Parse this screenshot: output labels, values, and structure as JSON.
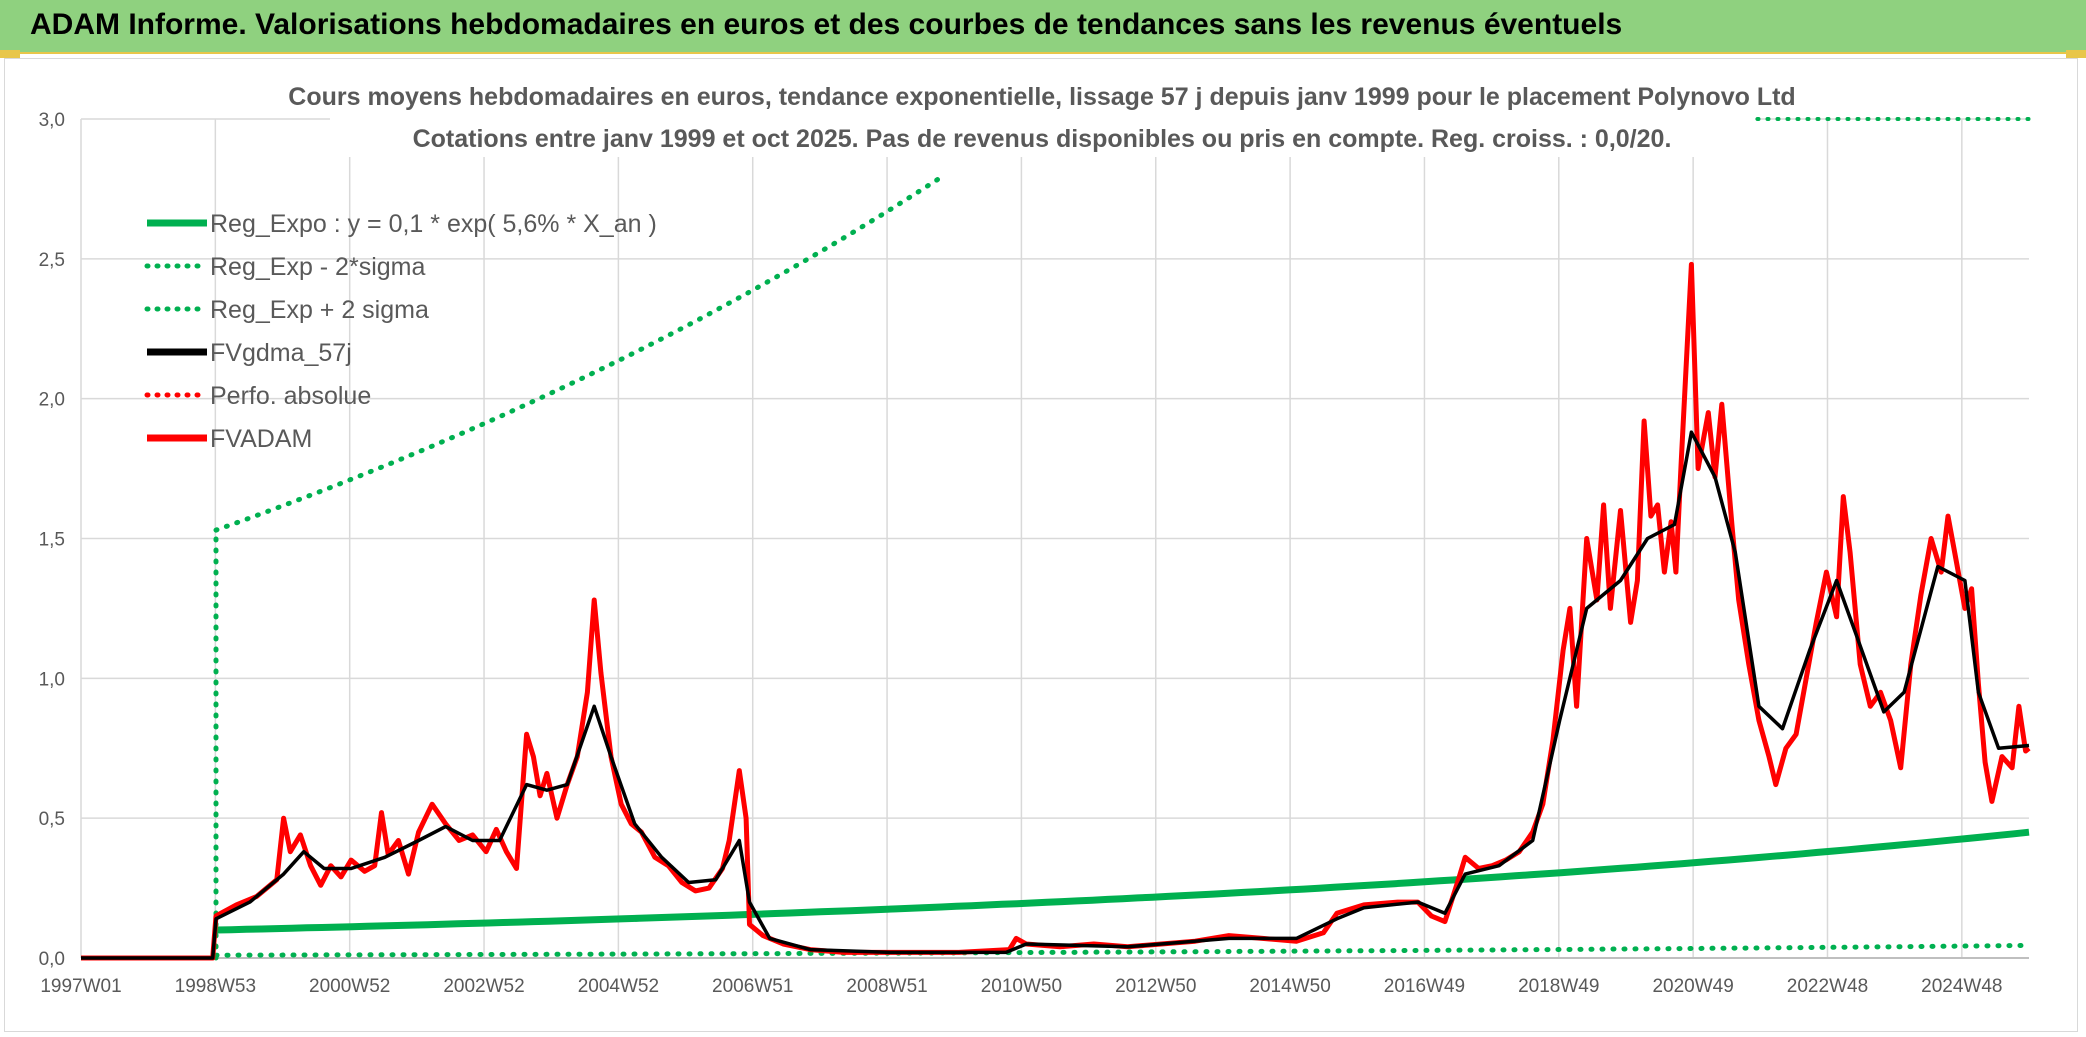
{
  "header": {
    "title": "ADAM Informe. Valorisations hebdomadaires en euros et des courbes de tendances sans les revenus éventuels"
  },
  "chart_data": {
    "type": "line",
    "title_line1": "Cours moyens hebdomadaires en euros, tendance exponentielle, lissage 57 j depuis janv 1999 pour le placement Polynovo Ltd",
    "title_line2": "Cotations entre janv 1999 et oct 2025. Pas de revenus disponibles ou pris en compte. Reg. croiss. : 0,0/20.",
    "x_ticks": [
      "1997W01",
      "1998W53",
      "2000W52",
      "2002W52",
      "2004W52",
      "2006W51",
      "2008W51",
      "2010W50",
      "2012W50",
      "2014W50",
      "2016W49",
      "2018W49",
      "2020W49",
      "2022W48",
      "2024W48"
    ],
    "y_ticks": [
      "0,0",
      "0,5",
      "1,0",
      "1,5",
      "2,0",
      "2,5",
      "3,0"
    ],
    "ylim": [
      0,
      3
    ],
    "xlim": [
      1997.0,
      2025.85
    ],
    "grid": true,
    "legend_position": "top-left",
    "legend": [
      {
        "label": "Reg_Expo : y = 0,1 * exp( 5,6% *  X_an )",
        "color": "#00b050",
        "style": "solid"
      },
      {
        "label": "Reg_Exp - 2*sigma",
        "color": "#00b050",
        "style": "dotted"
      },
      {
        "label": "Reg_Exp + 2 sigma",
        "color": "#00b050",
        "style": "dotted"
      },
      {
        "label": "FVgdma_57j",
        "color": "#000000",
        "style": "solid"
      },
      {
        "label": "Perfo. absolue",
        "color": "#ff0000",
        "style": "dotted"
      },
      {
        "label": "FVADAM",
        "color": "#ff0000",
        "style": "solid"
      }
    ],
    "series": [
      {
        "name": "FVADAM",
        "color": "#ff0000",
        "points": [
          [
            1997.0,
            0.0
          ],
          [
            1998.95,
            0.0
          ],
          [
            1999.0,
            0.15
          ],
          [
            1999.3,
            0.19
          ],
          [
            1999.6,
            0.22
          ],
          [
            1999.9,
            0.28
          ],
          [
            2000.0,
            0.5
          ],
          [
            2000.1,
            0.38
          ],
          [
            2000.25,
            0.44
          ],
          [
            2000.4,
            0.33
          ],
          [
            2000.55,
            0.26
          ],
          [
            2000.7,
            0.33
          ],
          [
            2000.85,
            0.29
          ],
          [
            2001.0,
            0.35
          ],
          [
            2001.2,
            0.31
          ],
          [
            2001.35,
            0.33
          ],
          [
            2001.45,
            0.52
          ],
          [
            2001.55,
            0.37
          ],
          [
            2001.7,
            0.42
          ],
          [
            2001.85,
            0.3
          ],
          [
            2002.0,
            0.45
          ],
          [
            2002.2,
            0.55
          ],
          [
            2002.4,
            0.48
          ],
          [
            2002.6,
            0.42
          ],
          [
            2002.8,
            0.44
          ],
          [
            2003.0,
            0.38
          ],
          [
            2003.15,
            0.46
          ],
          [
            2003.3,
            0.38
          ],
          [
            2003.45,
            0.32
          ],
          [
            2003.6,
            0.8
          ],
          [
            2003.7,
            0.72
          ],
          [
            2003.8,
            0.58
          ],
          [
            2003.9,
            0.66
          ],
          [
            2004.05,
            0.5
          ],
          [
            2004.2,
            0.62
          ],
          [
            2004.35,
            0.72
          ],
          [
            2004.5,
            0.95
          ],
          [
            2004.6,
            1.28
          ],
          [
            2004.7,
            1.02
          ],
          [
            2004.85,
            0.72
          ],
          [
            2005.0,
            0.55
          ],
          [
            2005.15,
            0.48
          ],
          [
            2005.3,
            0.45
          ],
          [
            2005.5,
            0.36
          ],
          [
            2005.7,
            0.33
          ],
          [
            2005.9,
            0.27
          ],
          [
            2006.1,
            0.24
          ],
          [
            2006.3,
            0.25
          ],
          [
            2006.5,
            0.32
          ],
          [
            2006.6,
            0.42
          ],
          [
            2006.75,
            0.67
          ],
          [
            2006.85,
            0.5
          ],
          [
            2006.9,
            0.12
          ],
          [
            2007.1,
            0.08
          ],
          [
            2007.4,
            0.05
          ],
          [
            2007.8,
            0.03
          ],
          [
            2008.3,
            0.02
          ],
          [
            2009.0,
            0.02
          ],
          [
            2010.0,
            0.02
          ],
          [
            2010.75,
            0.03
          ],
          [
            2010.85,
            0.07
          ],
          [
            2011.0,
            0.05
          ],
          [
            2011.5,
            0.04
          ],
          [
            2012.0,
            0.05
          ],
          [
            2012.5,
            0.04
          ],
          [
            2013.0,
            0.05
          ],
          [
            2013.5,
            0.06
          ],
          [
            2014.0,
            0.08
          ],
          [
            2014.5,
            0.07
          ],
          [
            2015.0,
            0.06
          ],
          [
            2015.4,
            0.09
          ],
          [
            2015.6,
            0.16
          ],
          [
            2016.0,
            0.19
          ],
          [
            2016.5,
            0.2
          ],
          [
            2016.8,
            0.2
          ],
          [
            2017.0,
            0.15
          ],
          [
            2017.2,
            0.13
          ],
          [
            2017.4,
            0.28
          ],
          [
            2017.5,
            0.36
          ],
          [
            2017.7,
            0.32
          ],
          [
            2017.9,
            0.33
          ],
          [
            2018.1,
            0.35
          ],
          [
            2018.3,
            0.38
          ],
          [
            2018.5,
            0.45
          ],
          [
            2018.65,
            0.55
          ],
          [
            2018.8,
            0.78
          ],
          [
            2018.95,
            1.1
          ],
          [
            2019.05,
            1.25
          ],
          [
            2019.15,
            0.9
          ],
          [
            2019.3,
            1.5
          ],
          [
            2019.45,
            1.28
          ],
          [
            2019.55,
            1.62
          ],
          [
            2019.65,
            1.25
          ],
          [
            2019.8,
            1.6
          ],
          [
            2019.95,
            1.2
          ],
          [
            2020.05,
            1.35
          ],
          [
            2020.15,
            1.92
          ],
          [
            2020.25,
            1.58
          ],
          [
            2020.35,
            1.62
          ],
          [
            2020.45,
            1.38
          ],
          [
            2020.55,
            1.56
          ],
          [
            2020.62,
            1.38
          ],
          [
            2020.7,
            1.78
          ],
          [
            2020.85,
            2.48
          ],
          [
            2020.95,
            1.75
          ],
          [
            2021.1,
            1.95
          ],
          [
            2021.2,
            1.72
          ],
          [
            2021.3,
            1.98
          ],
          [
            2021.45,
            1.55
          ],
          [
            2021.55,
            1.28
          ],
          [
            2021.7,
            1.05
          ],
          [
            2021.85,
            0.85
          ],
          [
            2022.0,
            0.72
          ],
          [
            2022.1,
            0.62
          ],
          [
            2022.25,
            0.75
          ],
          [
            2022.4,
            0.8
          ],
          [
            2022.55,
            1.0
          ],
          [
            2022.7,
            1.2
          ],
          [
            2022.85,
            1.38
          ],
          [
            2023.0,
            1.22
          ],
          [
            2023.1,
            1.65
          ],
          [
            2023.2,
            1.45
          ],
          [
            2023.35,
            1.05
          ],
          [
            2023.5,
            0.9
          ],
          [
            2023.65,
            0.95
          ],
          [
            2023.8,
            0.85
          ],
          [
            2023.95,
            0.68
          ],
          [
            2024.1,
            1.05
          ],
          [
            2024.25,
            1.3
          ],
          [
            2024.4,
            1.5
          ],
          [
            2024.55,
            1.38
          ],
          [
            2024.65,
            1.58
          ],
          [
            2024.75,
            1.45
          ],
          [
            2024.9,
            1.25
          ],
          [
            2025.0,
            1.32
          ],
          [
            2025.1,
            0.98
          ],
          [
            2025.2,
            0.7
          ],
          [
            2025.3,
            0.56
          ],
          [
            2025.45,
            0.72
          ],
          [
            2025.6,
            0.68
          ],
          [
            2025.7,
            0.9
          ],
          [
            2025.8,
            0.74
          ],
          [
            2025.85,
            0.75
          ]
        ]
      },
      {
        "name": "FVgdma_57j",
        "color": "#000000",
        "points": [
          [
            1997.0,
            0.0
          ],
          [
            1998.95,
            0.0
          ],
          [
            1999.0,
            0.14
          ],
          [
            1999.5,
            0.2
          ],
          [
            2000.0,
            0.3
          ],
          [
            2000.3,
            0.38
          ],
          [
            2000.6,
            0.32
          ],
          [
            2001.0,
            0.32
          ],
          [
            2001.5,
            0.36
          ],
          [
            2002.0,
            0.42
          ],
          [
            2002.4,
            0.47
          ],
          [
            2002.8,
            0.42
          ],
          [
            2003.2,
            0.42
          ],
          [
            2003.6,
            0.62
          ],
          [
            2003.9,
            0.6
          ],
          [
            2004.2,
            0.62
          ],
          [
            2004.6,
            0.9
          ],
          [
            2004.85,
            0.72
          ],
          [
            2005.2,
            0.48
          ],
          [
            2005.6,
            0.36
          ],
          [
            2006.0,
            0.27
          ],
          [
            2006.4,
            0.28
          ],
          [
            2006.75,
            0.42
          ],
          [
            2006.9,
            0.2
          ],
          [
            2007.2,
            0.07
          ],
          [
            2007.8,
            0.03
          ],
          [
            2009.0,
            0.02
          ],
          [
            2010.7,
            0.02
          ],
          [
            2011.0,
            0.05
          ],
          [
            2012.5,
            0.04
          ],
          [
            2014.0,
            0.07
          ],
          [
            2015.0,
            0.07
          ],
          [
            2015.6,
            0.14
          ],
          [
            2016.0,
            0.18
          ],
          [
            2016.8,
            0.2
          ],
          [
            2017.2,
            0.16
          ],
          [
            2017.5,
            0.3
          ],
          [
            2018.0,
            0.33
          ],
          [
            2018.5,
            0.42
          ],
          [
            2018.9,
            0.85
          ],
          [
            2019.3,
            1.25
          ],
          [
            2019.8,
            1.35
          ],
          [
            2020.2,
            1.5
          ],
          [
            2020.6,
            1.55
          ],
          [
            2020.85,
            1.88
          ],
          [
            2021.2,
            1.72
          ],
          [
            2021.5,
            1.45
          ],
          [
            2021.85,
            0.9
          ],
          [
            2022.2,
            0.82
          ],
          [
            2022.6,
            1.1
          ],
          [
            2023.0,
            1.35
          ],
          [
            2023.3,
            1.15
          ],
          [
            2023.7,
            0.88
          ],
          [
            2024.0,
            0.95
          ],
          [
            2024.5,
            1.4
          ],
          [
            2024.9,
            1.35
          ],
          [
            2025.1,
            0.95
          ],
          [
            2025.4,
            0.75
          ],
          [
            2025.85,
            0.76
          ]
        ]
      }
    ],
    "reg_expo": {
      "a": 0.1,
      "rate": 0.056,
      "start_year": 1999.0,
      "end_year": 2025.85
    },
    "reg_upper_start": 1.53,
    "reg_lower_start": 0.01
  }
}
